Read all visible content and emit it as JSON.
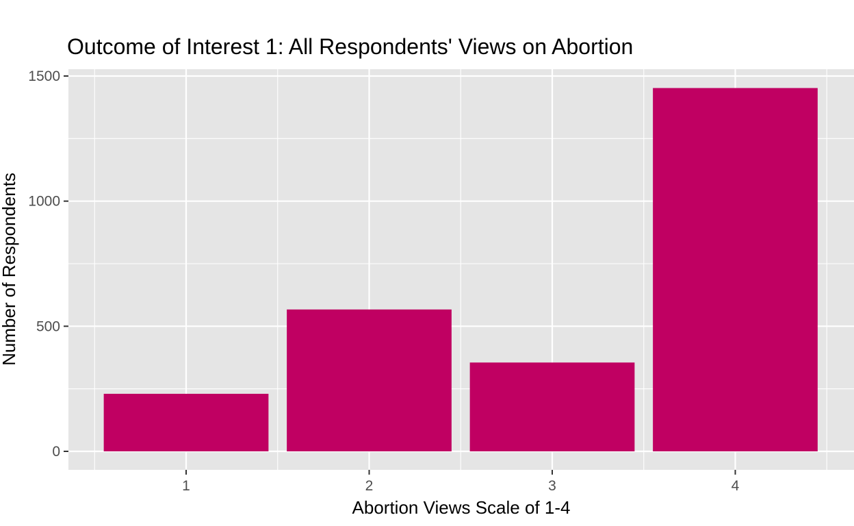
{
  "chart_data": {
    "type": "bar",
    "title": "Outcome of Interest 1: All Respondents' Views on Abortion",
    "xlabel": "Abortion Views Scale of 1-4",
    "ylabel": "Number of Respondents",
    "categories": [
      "1",
      "2",
      "3",
      "4"
    ],
    "values": [
      230,
      567,
      355,
      1452
    ],
    "ylim": [
      0,
      1500
    ],
    "yticks": [
      0,
      500,
      1000,
      1500
    ],
    "grid": true,
    "legend": "none",
    "colors": {
      "bar": "#c00062",
      "panel": "#e5e5e5",
      "grid": "#ffffff",
      "text": "#4d4d4d"
    }
  }
}
